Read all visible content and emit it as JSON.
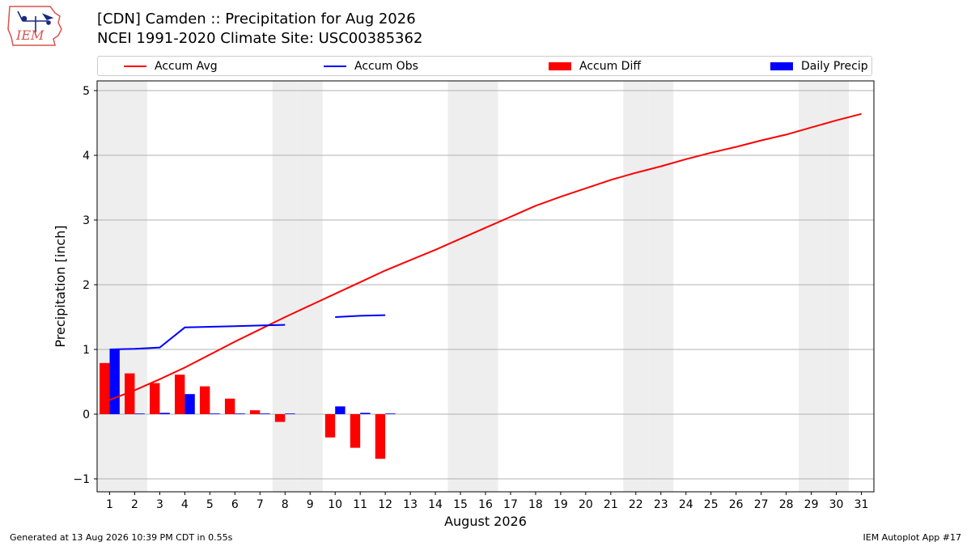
{
  "header": {
    "title_line1": "[CDN] Camden :: Precipitation for Aug 2026",
    "title_line2": "NCEI 1991-2020 Climate Site: USC00385362",
    "logo_text": "IEM"
  },
  "footer": {
    "left": "Generated at 13 Aug 2026 10:39 PM CDT in 0.55s",
    "right": "IEM Autoplot App #17"
  },
  "colors": {
    "accum_avg": "#ff0000",
    "accum_obs": "#0000ff",
    "accum_diff": "#ff0000",
    "daily_precip": "#0000ff",
    "weekend_band": "#eeeeee",
    "grid": "#b0b0b0"
  },
  "chart_data": {
    "type": "bar",
    "xlabel": "August 2026",
    "ylabel": "Precipitation [inch]",
    "xlim": [
      0.5,
      31.5
    ],
    "ylim": [
      -1.2,
      5.15
    ],
    "x_ticks": [
      1,
      2,
      3,
      4,
      5,
      6,
      7,
      8,
      9,
      10,
      11,
      12,
      13,
      14,
      15,
      16,
      17,
      18,
      19,
      20,
      21,
      22,
      23,
      24,
      25,
      26,
      27,
      28,
      29,
      30,
      31
    ],
    "y_ticks": [
      -1,
      0,
      1,
      2,
      3,
      4,
      5
    ],
    "grid": "horizontal",
    "legend_position": "top",
    "weekend_days": [
      1,
      2,
      8,
      9,
      15,
      16,
      22,
      23,
      29,
      30
    ],
    "legend": [
      "Accum Avg",
      "Accum Obs",
      "Accum Diff",
      "Daily Precip"
    ],
    "series": [
      {
        "name": "Accum Avg",
        "kind": "line",
        "x": [
          1,
          2,
          3,
          4,
          5,
          6,
          7,
          8,
          9,
          10,
          11,
          12,
          13,
          14,
          15,
          16,
          17,
          18,
          19,
          20,
          21,
          22,
          23,
          24,
          25,
          26,
          27,
          28,
          29,
          30,
          31
        ],
        "values": [
          0.22,
          0.37,
          0.54,
          0.72,
          0.92,
          1.12,
          1.31,
          1.5,
          1.68,
          1.86,
          2.04,
          2.22,
          2.38,
          2.54,
          2.71,
          2.88,
          3.05,
          3.22,
          3.36,
          3.49,
          3.62,
          3.73,
          3.83,
          3.94,
          4.04,
          4.13,
          4.23,
          4.32,
          4.43,
          4.54,
          4.64
        ]
      },
      {
        "name": "Accum Obs",
        "kind": "line",
        "x": [
          1,
          2,
          3,
          4,
          5,
          6,
          7,
          8,
          9,
          10,
          11,
          12
        ],
        "values": [
          1.0,
          1.01,
          1.03,
          1.34,
          1.35,
          1.36,
          1.37,
          1.38,
          null,
          1.5,
          1.52,
          1.53
        ]
      },
      {
        "name": "Accum Diff",
        "kind": "bar",
        "x": [
          1,
          2,
          3,
          4,
          5,
          6,
          7,
          8,
          9,
          10,
          11,
          12
        ],
        "values": [
          0.79,
          0.63,
          0.48,
          0.61,
          0.43,
          0.24,
          0.06,
          -0.12,
          null,
          -0.36,
          -0.52,
          -0.69
        ]
      },
      {
        "name": "Daily Precip",
        "kind": "bar",
        "x": [
          1,
          2,
          3,
          4,
          5,
          6,
          7,
          8,
          9,
          10,
          11,
          12
        ],
        "values": [
          1.0,
          0.01,
          0.02,
          0.31,
          0.01,
          0.01,
          0.01,
          0.01,
          null,
          0.12,
          0.02,
          0.01
        ]
      }
    ]
  }
}
